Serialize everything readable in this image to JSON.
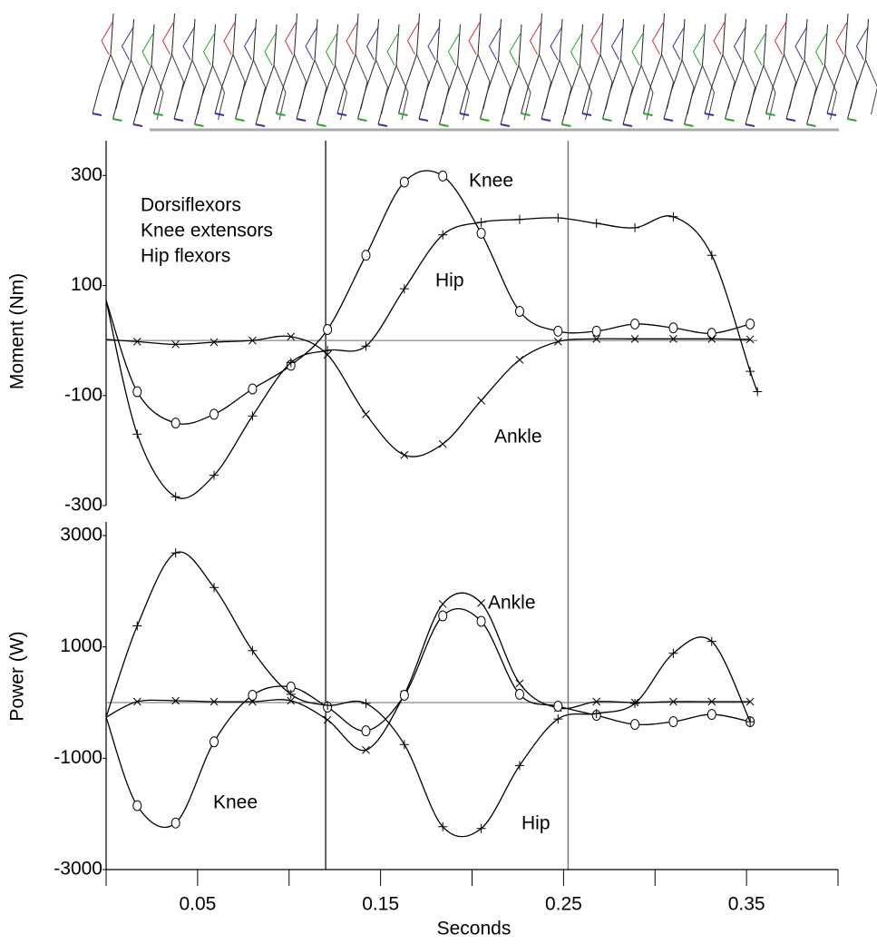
{
  "chart_data": [
    {
      "type": "line",
      "ylabel": "Moment (Nm)",
      "annotations": [
        "Dorsiflexors",
        "Knee extensors",
        "Hip flexors"
      ],
      "xlim": [
        0,
        0.4
      ],
      "ylim": [
        -300,
        350
      ],
      "yticks": [
        -300,
        -100,
        100,
        300
      ],
      "vlines": [
        0.12,
        0.2525
      ],
      "zero_line": true,
      "x": [
        0,
        0.017,
        0.038,
        0.059,
        0.08,
        0.101,
        0.121,
        0.142,
        0.163,
        0.184,
        0.205,
        0.226,
        0.247,
        0.268,
        0.289,
        0.31,
        0.331,
        0.352,
        0.356
      ],
      "series": [
        {
          "name": "Knee",
          "color": "#000000",
          "marker": "o",
          "values": [
            73,
            -93,
            -150,
            -134,
            -88,
            -45,
            20,
            155,
            288,
            299,
            195,
            53,
            17,
            17,
            30,
            23,
            13,
            30,
            null
          ]
        },
        {
          "name": "Hip",
          "color": "#000000",
          "marker": "+",
          "values": [
            73,
            -170,
            -284,
            -245,
            -137,
            -40,
            -18,
            -10,
            94,
            192,
            215,
            220,
            223,
            213,
            205,
            225,
            155,
            -56,
            -93
          ]
        },
        {
          "name": "Ankle",
          "color": "#000000",
          "marker": "x",
          "values": [
            2,
            -2,
            -7,
            -3,
            0,
            7,
            -26,
            -134,
            -208,
            -188,
            -109,
            -35,
            -2,
            3,
            3,
            3,
            3,
            2,
            null
          ]
        }
      ]
    },
    {
      "type": "line",
      "ylabel": "Power (W)",
      "xlabel": "Seconds",
      "xlim": [
        0,
        0.4
      ],
      "ylim": [
        -3000,
        3000
      ],
      "yticks": [
        -3000,
        -1000,
        1000,
        3000
      ],
      "xticks": [
        0.05,
        0.15,
        0.25,
        0.35
      ],
      "xminorticks": [
        0,
        0.1,
        0.2,
        0.3,
        0.4
      ],
      "vlines": [
        0.12,
        0.2525
      ],
      "zero_line": true,
      "x": [
        0,
        0.017,
        0.038,
        0.059,
        0.08,
        0.101,
        0.121,
        0.142,
        0.163,
        0.184,
        0.205,
        0.226,
        0.247,
        0.268,
        0.289,
        0.31,
        0.331,
        0.352
      ],
      "series": [
        {
          "name": "Ankle",
          "color": "#000000",
          "marker": "x",
          "values": [
            -262,
            16,
            33,
            16,
            16,
            33,
            -311,
            -852,
            148,
            1770,
            1787,
            344,
            -98,
            16,
            0,
            16,
            16,
            16
          ]
        },
        {
          "name": "Knee",
          "color": "#000000",
          "marker": "o",
          "values": [
            -262,
            -1852,
            -2164,
            -705,
            131,
            279,
            -82,
            -508,
            131,
            1557,
            1459,
            148,
            -66,
            -230,
            -393,
            -344,
            -213,
            -344
          ]
        },
        {
          "name": "Hip",
          "color": "#000000",
          "marker": "+",
          "values": [
            -262,
            1377,
            2689,
            2066,
            934,
            148,
            -49,
            -16,
            -754,
            -2230,
            -2262,
            -1131,
            -295,
            -197,
            -16,
            885,
            1098,
            -344
          ]
        }
      ]
    }
  ]
}
